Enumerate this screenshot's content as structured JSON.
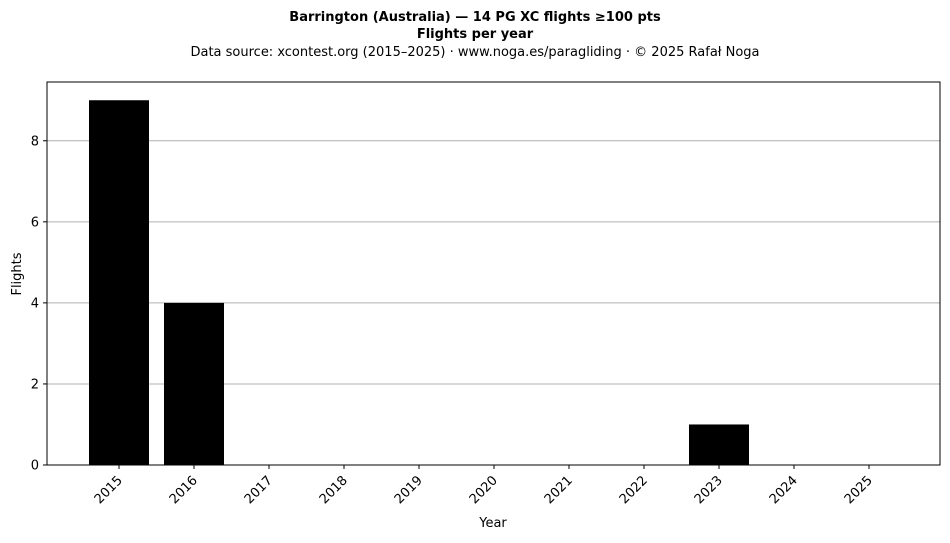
{
  "chart_data": {
    "type": "bar",
    "title_line1": "Barrington (Australia)  —  14 PG XC flights ≥100 pts",
    "title_line2": "Flights per year",
    "subtitle": "Data source: xcontest.org (2015–2025)  ·  www.noga.es/paragliding  ·  © 2025 Rafał Noga",
    "xlabel": "Year",
    "ylabel": "Flights",
    "categories": [
      "2015",
      "2016",
      "2017",
      "2018",
      "2019",
      "2020",
      "2021",
      "2022",
      "2023",
      "2024",
      "2025"
    ],
    "values": [
      9,
      4,
      0,
      0,
      0,
      0,
      0,
      0,
      1,
      0,
      0
    ],
    "ylim": [
      0,
      9.45
    ],
    "yticks": [
      0,
      2,
      4,
      6,
      8
    ],
    "grid": "horizontal",
    "bar_color": "#000000",
    "grid_color": "#b0b0b0"
  }
}
